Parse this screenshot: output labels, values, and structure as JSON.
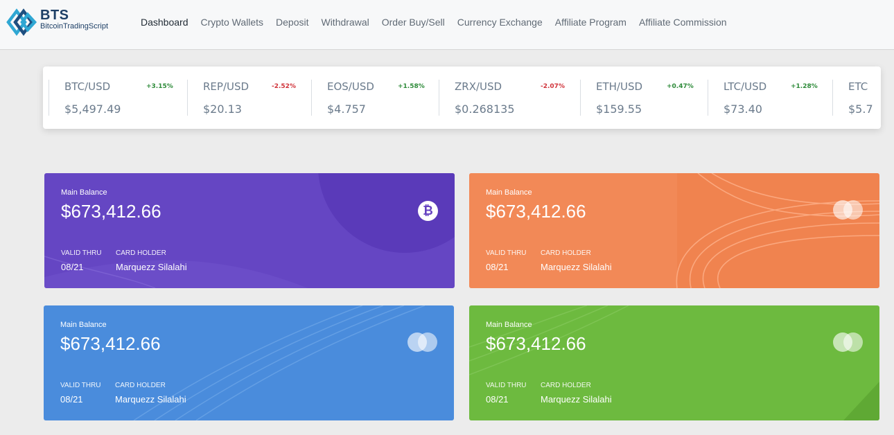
{
  "brand": {
    "title": "BTS",
    "subtitle": "BitcoinTradingScript"
  },
  "nav": [
    {
      "label": "Dashboard",
      "active": true
    },
    {
      "label": "Crypto Wallets"
    },
    {
      "label": "Deposit"
    },
    {
      "label": "Withdrawal"
    },
    {
      "label": "Order Buy/Sell"
    },
    {
      "label": "Currency Exchange"
    },
    {
      "label": "Affiliate Program"
    },
    {
      "label": "Affiliate Commission"
    }
  ],
  "ticker": [
    {
      "pair": "BTC/USD",
      "change": "+3.15%",
      "direction": "up",
      "price": "$5,497.49"
    },
    {
      "pair": "REP/USD",
      "change": "-2.52%",
      "direction": "down",
      "price": "$20.13"
    },
    {
      "pair": "EOS/USD",
      "change": "+1.58%",
      "direction": "up",
      "price": "$4.757"
    },
    {
      "pair": "ZRX/USD",
      "change": "-2.07%",
      "direction": "down",
      "price": "$0.268135"
    },
    {
      "pair": "ETH/USD",
      "change": "+0.47%",
      "direction": "up",
      "price": "$159.55"
    },
    {
      "pair": "LTC/USD",
      "change": "+1.28%",
      "direction": "up",
      "price": "$73.40"
    },
    {
      "pair": "ETC",
      "change": "",
      "direction": "up",
      "price": "$5.7"
    }
  ],
  "cards": [
    {
      "label": "Main Balance",
      "amount": "$673,412.66",
      "valid_label": "VALID THRU",
      "holder_label": "CARD HOLDER",
      "valid": "08/21",
      "holder": "Marquezz Silalahi",
      "color": "#6546c3",
      "icon": "bitcoin-icon"
    },
    {
      "label": "Main Balance",
      "amount": "$673,412.66",
      "valid_label": "VALID THRU",
      "holder_label": "CARD HOLDER",
      "valid": "08/21",
      "holder": "Marquezz Silalahi",
      "color": "#f0834f",
      "icon": "mastercard-icon"
    },
    {
      "label": "Main Balance",
      "amount": "$673,412.66",
      "valid_label": "VALID THRU",
      "holder_label": "CARD HOLDER",
      "valid": "08/21",
      "holder": "Marquezz Silalahi",
      "color": "#4a8cdc",
      "icon": "mastercard-icon"
    },
    {
      "label": "Main Balance",
      "amount": "$673,412.66",
      "valid_label": "VALID THRU",
      "holder_label": "CARD HOLDER",
      "valid": "08/21",
      "holder": "Marquezz Silalahi",
      "color": "#6dba3f",
      "icon": "mastercard-icon"
    }
  ],
  "bitcoin_glyph": "₿"
}
